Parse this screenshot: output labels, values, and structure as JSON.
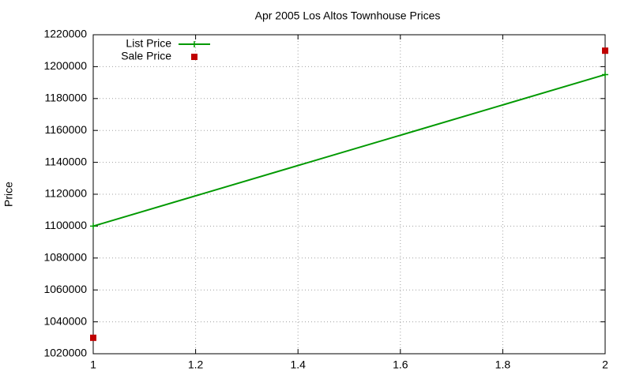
{
  "chart_data": {
    "type": "line",
    "title": "Apr 2005 Los Altos Townhouse Prices",
    "ylabel": "Price",
    "x": [
      1,
      2
    ],
    "series": [
      {
        "name": "List Price",
        "color": "#009900",
        "mode": "lines+markers",
        "marker": "plus",
        "values": [
          1100000,
          1195000
        ]
      },
      {
        "name": "Sale Price",
        "color": "#c00000",
        "mode": "markers",
        "marker": "square",
        "values": [
          1030000,
          1210000
        ]
      }
    ],
    "xlim": [
      1,
      2
    ],
    "xticks": [
      1,
      1.2,
      1.4,
      1.6,
      1.8,
      2
    ],
    "ylim": [
      1020000,
      1220000
    ],
    "yticks": [
      1020000,
      1040000,
      1060000,
      1080000,
      1100000,
      1120000,
      1140000,
      1160000,
      1180000,
      1200000,
      1220000
    ],
    "grid": true,
    "legend": "top-left"
  }
}
